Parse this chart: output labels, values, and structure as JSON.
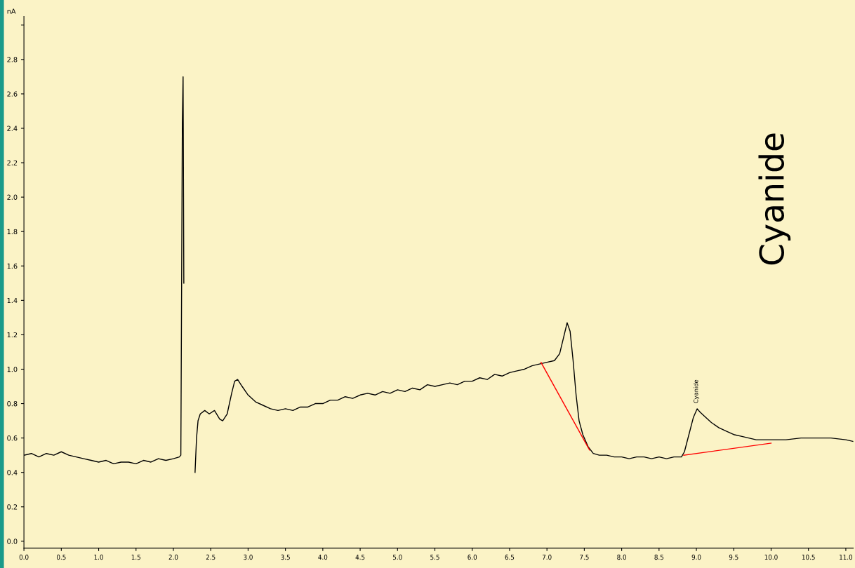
{
  "chart_data": {
    "type": "line",
    "ylabel": "nA",
    "xlim": [
      0,
      11.1
    ],
    "ylim": [
      -0.04,
      3.05
    ],
    "xticks": [
      {
        "value": 0,
        "label": "0.0"
      },
      {
        "value": 0.5,
        "label": "0.5"
      },
      {
        "value": 1,
        "label": "1.0"
      },
      {
        "value": 1.5,
        "label": "1.5"
      },
      {
        "value": 2,
        "label": "2.0"
      },
      {
        "value": 2.5,
        "label": "2.5"
      },
      {
        "value": 3,
        "label": "3.0"
      },
      {
        "value": 3.5,
        "label": "3.5"
      },
      {
        "value": 4,
        "label": "4.0"
      },
      {
        "value": 4.5,
        "label": "4.5"
      },
      {
        "value": 5,
        "label": "5.0"
      },
      {
        "value": 5.5,
        "label": "5.5"
      },
      {
        "value": 6,
        "label": "6.0"
      },
      {
        "value": 6.5,
        "label": "6.5"
      },
      {
        "value": 7,
        "label": "7.0"
      },
      {
        "value": 7.5,
        "label": "7.5"
      },
      {
        "value": 8,
        "label": "8.0"
      },
      {
        "value": 8.5,
        "label": "8.5"
      },
      {
        "value": 9,
        "label": "9.0"
      },
      {
        "value": 9.5,
        "label": "9.5"
      },
      {
        "value": 10,
        "label": "10.0"
      },
      {
        "value": 10.5,
        "label": "10.5"
      },
      {
        "value": 11,
        "label": "11.0"
      }
    ],
    "yticks": [
      {
        "value": 0,
        "label": "0.0"
      },
      {
        "value": 0.2,
        "label": "0.2"
      },
      {
        "value": 0.4,
        "label": "0.4"
      },
      {
        "value": 0.6,
        "label": "0.6"
      },
      {
        "value": 0.8,
        "label": "0.8"
      },
      {
        "value": 1,
        "label": "1.0"
      },
      {
        "value": 1.2,
        "label": "1.2"
      },
      {
        "value": 1.4,
        "label": "1.4"
      },
      {
        "value": 1.6,
        "label": "1.6"
      },
      {
        "value": 1.8,
        "label": "1.8"
      },
      {
        "value": 2,
        "label": "2.0"
      },
      {
        "value": 2.2,
        "label": "2.2"
      },
      {
        "value": 2.4,
        "label": "2.4"
      },
      {
        "value": 2.6,
        "label": "2.6"
      },
      {
        "value": 2.8,
        "label": "2.8"
      },
      {
        "value": 3,
        "label": null
      }
    ],
    "grid": false,
    "legend": false,
    "marker": "none",
    "line_style": "solid",
    "series": [
      {
        "color": "#000000",
        "x": [
          0,
          0.1,
          0.2,
          0.3,
          0.4,
          0.5,
          0.6,
          0.7,
          0.8,
          0.9,
          1.0,
          1.1,
          1.2,
          1.3,
          1.4,
          1.5,
          1.6,
          1.7,
          1.8,
          1.9,
          2.0,
          2.08,
          2.1,
          2.12,
          2.13,
          2.14,
          2.15,
          2.28,
          2.29,
          2.31,
          2.33,
          2.36,
          2.42,
          2.48,
          2.55,
          2.62,
          2.66,
          2.72,
          2.78,
          2.82,
          2.86,
          2.92,
          3.0,
          3.1,
          3.2,
          3.3,
          3.4,
          3.5,
          3.6,
          3.7,
          3.8,
          3.9,
          4.0,
          4.1,
          4.2,
          4.3,
          4.4,
          4.5,
          4.6,
          4.7,
          4.8,
          4.9,
          5.0,
          5.1,
          5.2,
          5.3,
          5.4,
          5.5,
          5.6,
          5.7,
          5.8,
          5.9,
          6.0,
          6.1,
          6.2,
          6.3,
          6.4,
          6.5,
          6.6,
          6.7,
          6.8,
          6.9,
          7.0,
          7.1,
          7.17,
          7.22,
          7.27,
          7.31,
          7.35,
          7.39,
          7.43,
          7.48,
          7.55,
          7.62,
          7.7,
          7.8,
          7.9,
          8.0,
          8.1,
          8.2,
          8.3,
          8.4,
          8.5,
          8.6,
          8.7,
          8.8,
          8.84,
          8.9,
          8.96,
          9.01,
          9.05,
          9.1,
          9.2,
          9.3,
          9.4,
          9.5,
          9.6,
          9.7,
          9.8,
          9.9,
          10.0,
          10.2,
          10.4,
          10.6,
          10.8,
          11.0,
          11.1
        ],
        "values": [
          0.5,
          0.51,
          0.49,
          0.51,
          0.5,
          0.52,
          0.5,
          0.49,
          0.48,
          0.47,
          0.46,
          0.47,
          0.45,
          0.46,
          0.46,
          0.45,
          0.47,
          0.46,
          0.48,
          0.47,
          0.48,
          0.49,
          0.5,
          2.43,
          2.7,
          1.5,
          null,
          null,
          0.4,
          0.6,
          0.7,
          0.74,
          0.76,
          0.74,
          0.76,
          0.71,
          0.7,
          0.74,
          0.86,
          0.93,
          0.94,
          0.9,
          0.85,
          0.81,
          0.79,
          0.77,
          0.76,
          0.77,
          0.76,
          0.78,
          0.78,
          0.8,
          0.8,
          0.82,
          0.82,
          0.84,
          0.83,
          0.85,
          0.86,
          0.85,
          0.87,
          0.86,
          0.88,
          0.87,
          0.89,
          0.88,
          0.91,
          0.9,
          0.91,
          0.92,
          0.91,
          0.93,
          0.93,
          0.95,
          0.94,
          0.97,
          0.96,
          0.98,
          0.99,
          1.0,
          1.02,
          1.03,
          1.04,
          1.05,
          1.09,
          1.18,
          1.27,
          1.22,
          1.05,
          0.85,
          0.7,
          0.62,
          0.55,
          0.51,
          0.5,
          0.5,
          0.49,
          0.49,
          0.48,
          0.49,
          0.49,
          0.48,
          0.49,
          0.48,
          0.49,
          0.49,
          0.52,
          0.62,
          0.72,
          0.77,
          0.75,
          0.73,
          0.69,
          0.66,
          0.64,
          0.62,
          0.61,
          0.6,
          0.59,
          0.59,
          0.59,
          0.59,
          0.6,
          0.6,
          0.6,
          0.59,
          0.58
        ]
      },
      {
        "color": "#ff0000",
        "x": [
          6.92,
          7.57
        ],
        "values": [
          1.04,
          0.53
        ]
      },
      {
        "color": "#ff0000",
        "x": [
          8.83,
          10.0
        ],
        "values": [
          0.5,
          0.57
        ]
      }
    ],
    "annotations": [
      {
        "text": "Cyanide",
        "x": 9.0,
        "y": 0.79
      },
      "Cyanide"
    ]
  }
}
